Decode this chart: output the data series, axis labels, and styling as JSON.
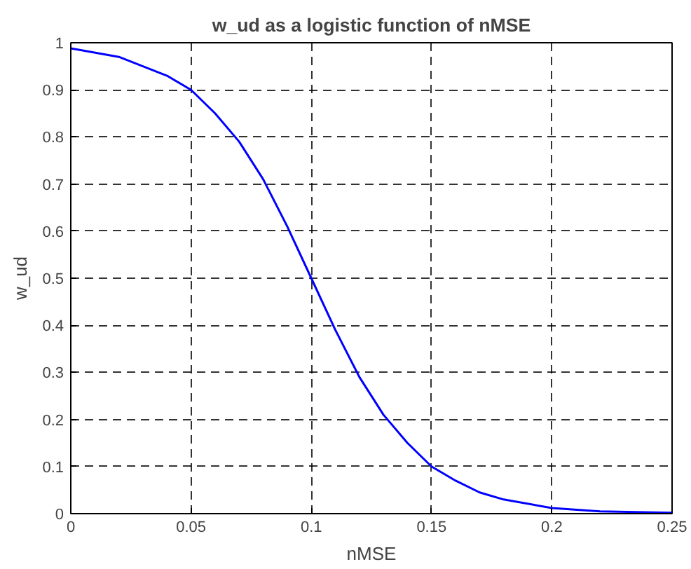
{
  "chart_data": {
    "type": "line",
    "title": "w_ud as a logistic function of nMSE",
    "xlabel": "nMSE",
    "ylabel": "w_ud",
    "x": [
      0,
      0.02,
      0.04,
      0.05,
      0.06,
      0.07,
      0.08,
      0.09,
      0.1,
      0.11,
      0.12,
      0.13,
      0.14,
      0.15,
      0.16,
      0.17,
      0.18,
      0.2,
      0.22,
      0.25
    ],
    "series": [
      {
        "color": "#0000ff",
        "values": [
          0.988,
          0.97,
          0.93,
          0.9,
          0.85,
          0.79,
          0.71,
          0.61,
          0.5,
          0.39,
          0.29,
          0.21,
          0.15,
          0.1,
          0.07,
          0.045,
          0.03,
          0.012,
          0.005,
          0.002
        ]
      }
    ],
    "xlim": [
      0,
      0.25
    ],
    "ylim": [
      0,
      1
    ],
    "xticks": [
      0,
      0.05,
      0.1,
      0.15,
      0.2,
      0.25
    ],
    "yticks": [
      0,
      0.1,
      0.2,
      0.3,
      0.4,
      0.5,
      0.6,
      0.7,
      0.8,
      0.9,
      1
    ],
    "grid": true,
    "line_style": "solid",
    "marker": "none"
  }
}
